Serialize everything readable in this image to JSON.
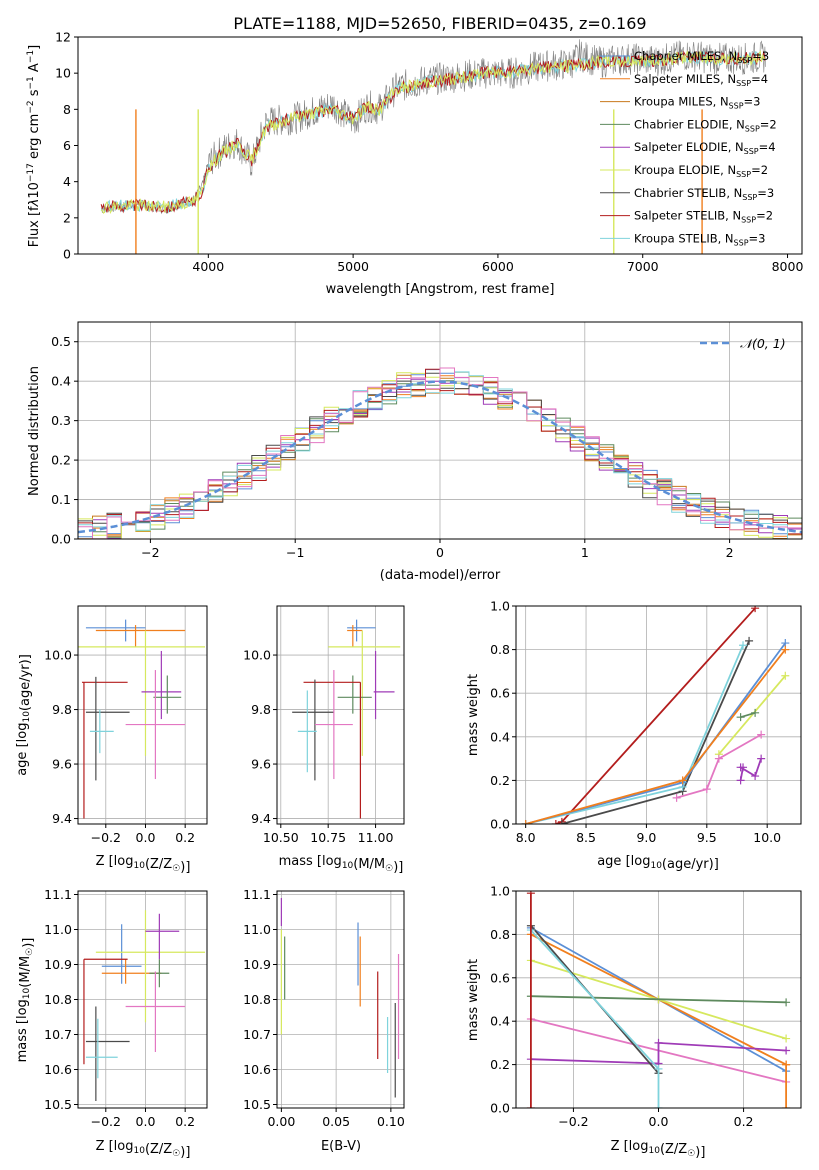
{
  "title": "PLATE=1188, MJD=52650, FIBERID=0435, z=0.169",
  "colors": {
    "Chabrier MILES": "#5b8fd6",
    "Salpeter MILES": "#f07f1e",
    "Kroupa MILES": "#c8781c",
    "Chabrier ELODIE": "#5e8a5e",
    "Salpeter ELODIE": "#9f3bb7",
    "Kroupa ELODIE": "#d6e85e",
    "Chabrier STELIB": "#4a4a4a",
    "Salpeter STELIB": "#b31d1d",
    "Kroupa STELIB": "#7fd3dc",
    "pink": "#e377c2",
    "data": "#808080",
    "normal": "#5b8fd6"
  },
  "chart_data": [
    {
      "type": "line",
      "id": "spectrum",
      "title": "PLATE=1188, MJD=52650, FIBERID=0435, z=0.169",
      "xlabel": "wavelength [Angstrom, rest frame]",
      "ylabel": "Flux [fλ10⁻¹⁷ erg cm⁻² s⁻¹ A⁻¹]",
      "xlim": [
        3100,
        8100
      ],
      "ylim": [
        0,
        12
      ],
      "xticks": [
        "4000",
        "5000",
        "6000",
        "7000",
        "8000"
      ],
      "yticks": [
        "0",
        "2",
        "4",
        "6",
        "8",
        "10",
        "12"
      ],
      "legend_position": "right",
      "legend": [
        {
          "name": "Chabrier MILES",
          "nssp": "3"
        },
        {
          "name": "Salpeter MILES",
          "nssp": "4"
        },
        {
          "name": "Kroupa MILES",
          "nssp": "3"
        },
        {
          "name": "Chabrier ELODIE",
          "nssp": "2"
        },
        {
          "name": "Salpeter ELODIE",
          "nssp": "4"
        },
        {
          "name": "Kroupa ELODIE",
          "nssp": "2"
        },
        {
          "name": "Chabrier STELIB",
          "nssp": "3"
        },
        {
          "name": "Salpeter STELIB",
          "nssp": "2"
        },
        {
          "name": "Kroupa STELIB",
          "nssp": "3"
        }
      ],
      "series": [
        {
          "name": "data",
          "x": [
            3260,
            3500,
            3700,
            3900,
            3960,
            4000,
            4100,
            4200,
            4300,
            4400,
            4600,
            4860,
            5000,
            5100,
            5175,
            5300,
            5500,
            5700,
            5900,
            6100,
            6300,
            6500,
            6563,
            6700,
            6900,
            7100,
            7300,
            7500,
            7700,
            7850
          ],
          "y": [
            2.5,
            2.8,
            2.5,
            3.0,
            3.8,
            5.0,
            5.8,
            6.2,
            5.0,
            7.3,
            7.5,
            8.3,
            7.3,
            8.2,
            8.0,
            9.2,
            9.6,
            9.8,
            10.0,
            10.0,
            10.4,
            10.5,
            11.0,
            10.6,
            10.8,
            10.7,
            11.0,
            10.8,
            10.8,
            10.9
          ]
        },
        {
          "name": "model",
          "x": [
            3260,
            3500,
            3700,
            3900,
            3960,
            4000,
            4100,
            4200,
            4300,
            4400,
            4600,
            4860,
            5000,
            5100,
            5175,
            5300,
            5500,
            5700,
            5900,
            6100,
            6300,
            6500,
            6563,
            6700,
            6900,
            7100,
            7300,
            7500,
            7700,
            7850
          ],
          "y": [
            2.6,
            2.7,
            2.6,
            2.9,
            3.5,
            4.8,
            5.6,
            6.1,
            5.2,
            7.0,
            7.6,
            8.0,
            7.5,
            8.2,
            7.9,
            9.1,
            9.5,
            9.7,
            10.0,
            10.1,
            10.3,
            10.4,
            10.5,
            10.6,
            10.7,
            10.7,
            10.9,
            10.8,
            10.8,
            10.9
          ]
        }
      ]
    },
    {
      "type": "histogram",
      "id": "residuals",
      "xlabel": "(data-model)/error",
      "ylabel": "Normed distribution",
      "xlim": [
        -2.5,
        2.5
      ],
      "ylim": [
        0,
        0.55
      ],
      "xticks": [
        "−2",
        "−1",
        "0",
        "1",
        "2"
      ],
      "yticks": [
        "0.0",
        "0.1",
        "0.2",
        "0.3",
        "0.4",
        "0.5"
      ],
      "grid": true,
      "legend_position": "top-right",
      "normal_label": "𝒩(0, 1)"
    },
    {
      "type": "errorbar",
      "id": "age-Z",
      "xlabel": "Z [log₁₀(Z/Z☉)]",
      "ylabel": "age  [log₁₀(age/yr)]",
      "xlim": [
        -0.34,
        0.31
      ],
      "ylim": [
        9.38,
        10.18
      ],
      "xticks": [
        "−0.2",
        "0.0",
        "0.2"
      ],
      "yticks": [
        "9.4",
        "9.6",
        "9.8",
        "10.0"
      ],
      "points": [
        {
          "c": "Chabrier MILES",
          "x": -0.1,
          "y": 10.1,
          "ex": [
            0.2,
            0.1
          ],
          "ey": [
            0.05,
            0.03
          ]
        },
        {
          "c": "Salpeter MILES",
          "x": -0.05,
          "y": 10.09,
          "ex": [
            0.2,
            0.25
          ],
          "ey": [
            0.06,
            0.02
          ]
        },
        {
          "c": "Kroupa ELODIE",
          "x": 0.0,
          "y": 10.03,
          "ex": [
            0.35,
            0.3
          ],
          "ey": [
            0.4,
            0.06
          ]
        },
        {
          "c": "Salpeter ELODIE",
          "x": 0.08,
          "y": 9.865,
          "ex": [
            0.1,
            0.1
          ],
          "ey": [
            0.1,
            0.15
          ]
        },
        {
          "c": "Chabrier ELODIE",
          "x": 0.11,
          "y": 9.845,
          "ex": [
            0.07,
            0.07
          ],
          "ey": [
            0.06,
            0.08
          ]
        },
        {
          "c": "Salpeter STELIB",
          "x": -0.31,
          "y": 9.9,
          "ex": [
            0.01,
            0.22
          ],
          "ey": [
            0.5,
            0.0
          ]
        },
        {
          "c": "Chabrier STELIB",
          "x": -0.25,
          "y": 9.79,
          "ex": [
            0.05,
            0.17
          ],
          "ey": [
            0.25,
            0.13
          ]
        },
        {
          "c": "Kroupa STELIB",
          "x": -0.23,
          "y": 9.72,
          "ex": [
            0.05,
            0.07
          ],
          "ey": [
            0.08,
            0.08
          ]
        },
        {
          "c": "pink",
          "x": 0.05,
          "y": 9.745,
          "ex": [
            0.15,
            0.15
          ],
          "ey": [
            0.2,
            0.2
          ]
        }
      ]
    },
    {
      "type": "errorbar",
      "id": "age-mass",
      "xlabel": "mass [log₁₀(M/M☉)]",
      "ylabel": "",
      "xlim": [
        10.48,
        11.15
      ],
      "ylim": [
        9.38,
        10.18
      ],
      "xticks": [
        "10.50",
        "10.75",
        "11.00"
      ],
      "yticks": [
        "9.4",
        "9.6",
        "9.8",
        "10.0"
      ],
      "points": [
        {
          "c": "Chabrier MILES",
          "x": 10.9,
          "y": 10.1,
          "ex": [
            0.05,
            0.1
          ],
          "ey": [
            0.05,
            0.03
          ]
        },
        {
          "c": "Salpeter MILES",
          "x": 10.88,
          "y": 10.09,
          "ex": [
            0.03,
            0.05
          ],
          "ey": [
            0.06,
            0.02
          ]
        },
        {
          "c": "Kroupa ELODIE",
          "x": 10.93,
          "y": 10.03,
          "ex": [
            0.18,
            0.2
          ],
          "ey": [
            0.4,
            0.06
          ]
        },
        {
          "c": "Salpeter ELODIE",
          "x": 11.0,
          "y": 9.865,
          "ex": [
            0.01,
            0.1
          ],
          "ey": [
            0.1,
            0.15
          ]
        },
        {
          "c": "Chabrier ELODIE",
          "x": 10.88,
          "y": 9.845,
          "ex": [
            0.08,
            0.1
          ],
          "ey": [
            0.06,
            0.08
          ]
        },
        {
          "c": "Salpeter STELIB",
          "x": 10.92,
          "y": 9.9,
          "ex": [
            0.3,
            0.0
          ],
          "ey": [
            0.5,
            0.0
          ]
        },
        {
          "c": "Chabrier STELIB",
          "x": 10.68,
          "y": 9.79,
          "ex": [
            0.12,
            0.1
          ],
          "ey": [
            0.25,
            0.12
          ]
        },
        {
          "c": "Kroupa STELIB",
          "x": 10.64,
          "y": 9.72,
          "ex": [
            0.05,
            0.05
          ],
          "ey": [
            0.15,
            0.15
          ]
        },
        {
          "c": "pink",
          "x": 10.78,
          "y": 9.745,
          "ex": [
            0.1,
            0.1
          ],
          "ey": [
            0.2,
            0.2
          ]
        }
      ]
    },
    {
      "type": "line",
      "id": "weight-age",
      "xlabel": "age  [log₁₀(age/yr)]",
      "ylabel": "mass weight",
      "xlim": [
        7.92,
        10.28
      ],
      "ylim": [
        0,
        1
      ],
      "xticks": [
        "8.0",
        "8.5",
        "9.0",
        "9.5",
        "10.0"
      ],
      "yticks": [
        "0.0",
        "0.2",
        "0.4",
        "0.6",
        "0.8",
        "1.0"
      ],
      "grid": true,
      "series": [
        {
          "c": "Salpeter STELIB",
          "x": [
            8.25,
            8.3,
            9.9
          ],
          "y": [
            0.0,
            0.01,
            0.99
          ]
        },
        {
          "c": "Chabrier STELIB",
          "x": [
            8.3,
            9.3,
            9.85
          ],
          "y": [
            0.0,
            0.15,
            0.84
          ]
        },
        {
          "c": "Kroupa STELIB",
          "x": [
            8.0,
            9.3,
            9.8
          ],
          "y": [
            0.0,
            0.17,
            0.82
          ]
        },
        {
          "c": "Chabrier MILES",
          "x": [
            8.0,
            9.3,
            10.15
          ],
          "y": [
            0.0,
            0.19,
            0.83
          ]
        },
        {
          "c": "Salpeter MILES",
          "x": [
            8.0,
            9.3,
            10.15
          ],
          "y": [
            0.0,
            0.2,
            0.8
          ]
        },
        {
          "c": "Kroupa ELODIE",
          "x": [
            9.6,
            10.15
          ],
          "y": [
            0.32,
            0.68
          ]
        },
        {
          "c": "Chabrier ELODIE",
          "x": [
            9.78,
            9.9
          ],
          "y": [
            0.49,
            0.51
          ]
        },
        {
          "c": "pink",
          "x": [
            9.25,
            9.5,
            9.6,
            9.95
          ],
          "y": [
            0.12,
            0.16,
            0.3,
            0.41
          ]
        },
        {
          "c": "Salpeter ELODIE",
          "x": [
            9.78,
            9.9,
            9.95
          ],
          "y": [
            0.26,
            0.22,
            0.3
          ]
        },
        {
          "c": "Salpeter ELODIE",
          "x": [
            9.78,
            9.8
          ],
          "y": [
            0.2,
            0.26
          ]
        }
      ]
    },
    {
      "type": "errorbar",
      "id": "mass-Z",
      "xlabel": "Z [log₁₀(Z/Z☉)]",
      "ylabel": "mass [log₁₀(M/M☉)]",
      "xlim": [
        -0.34,
        0.31
      ],
      "ylim": [
        10.49,
        11.11
      ],
      "xticks": [
        "−0.2",
        "0.0",
        "0.2"
      ],
      "yticks": [
        "10.5",
        "10.6",
        "10.7",
        "10.8",
        "10.9",
        "11.0",
        "11.1"
      ],
      "points": [
        {
          "c": "Chabrier MILES",
          "x": -0.12,
          "y": 10.895,
          "ex": [
            0.1,
            0.1
          ],
          "ey": [
            0.05,
            0.12
          ]
        },
        {
          "c": "Salpeter MILES",
          "x": -0.1,
          "y": 10.875,
          "ex": [
            0.12,
            0.18
          ],
          "ey": [
            0.03,
            0.04
          ]
        },
        {
          "c": "Kroupa ELODIE",
          "x": 0.0,
          "y": 10.935,
          "ex": [
            0.25,
            0.3
          ],
          "ey": [
            0.2,
            0.12
          ]
        },
        {
          "c": "Salpeter ELODIE",
          "x": 0.07,
          "y": 10.995,
          "ex": [
            0.07,
            0.1
          ],
          "ey": [
            0.08,
            0.05
          ]
        },
        {
          "c": "Chabrier ELODIE",
          "x": 0.07,
          "y": 10.875,
          "ex": [
            0.05,
            0.05
          ],
          "ey": [
            0.04,
            0.04
          ]
        },
        {
          "c": "Salpeter STELIB",
          "x": -0.31,
          "y": 10.915,
          "ex": [
            0.0,
            0.22
          ],
          "ey": [
            0.3,
            0.0
          ]
        },
        {
          "c": "Chabrier STELIB",
          "x": -0.25,
          "y": 10.68,
          "ex": [
            0.05,
            0.17
          ],
          "ey": [
            0.17,
            0.1
          ]
        },
        {
          "c": "Kroupa STELIB",
          "x": -0.24,
          "y": 10.635,
          "ex": [
            0.06,
            0.1
          ],
          "ey": [
            0.06,
            0.11
          ]
        },
        {
          "c": "pink",
          "x": 0.05,
          "y": 10.78,
          "ex": [
            0.15,
            0.15
          ],
          "ey": [
            0.13,
            0.1
          ]
        }
      ]
    },
    {
      "type": "errorbar",
      "id": "mass-EBV",
      "xlabel": "E(B-V)",
      "ylabel": "",
      "xlim": [
        -0.004,
        0.112
      ],
      "ylim": [
        10.49,
        11.11
      ],
      "xticks": [
        "0.00",
        "0.05",
        "0.10"
      ],
      "yticks": [
        "10.5",
        "10.6",
        "10.7",
        "10.8",
        "10.9",
        "11.0",
        "11.1"
      ],
      "points": [
        {
          "c": "Salpeter ELODIE",
          "x": 0.0,
          "y": 11.05,
          "ex": [
            0,
            0
          ],
          "ey": [
            0.04,
            0.04
          ]
        },
        {
          "c": "Kroupa ELODIE",
          "x": 0.0,
          "y": 10.9,
          "ex": [
            0,
            0
          ],
          "ey": [
            0.2,
            0.1
          ]
        },
        {
          "c": "Chabrier ELODIE",
          "x": 0.003,
          "y": 10.89,
          "ex": [
            0,
            0
          ],
          "ey": [
            0.09,
            0.09
          ]
        },
        {
          "c": "Chabrier MILES",
          "x": 0.07,
          "y": 10.93,
          "ex": [
            0,
            0
          ],
          "ey": [
            0.09,
            0.09
          ]
        },
        {
          "c": "Salpeter MILES",
          "x": 0.072,
          "y": 10.88,
          "ex": [
            0,
            0
          ],
          "ey": [
            0.1,
            0.1
          ]
        },
        {
          "c": "Salpeter STELIB",
          "x": 0.088,
          "y": 10.75,
          "ex": [
            0,
            0
          ],
          "ey": [
            0.12,
            0.13
          ]
        },
        {
          "c": "Kroupa STELIB",
          "x": 0.097,
          "y": 10.69,
          "ex": [
            0,
            0
          ],
          "ey": [
            0.1,
            0.06
          ]
        },
        {
          "c": "Chabrier STELIB",
          "x": 0.104,
          "y": 10.67,
          "ex": [
            0,
            0
          ],
          "ey": [
            0.15,
            0.12
          ]
        },
        {
          "c": "pink",
          "x": 0.107,
          "y": 10.78,
          "ex": [
            0,
            0
          ],
          "ey": [
            0.15,
            0.15
          ]
        }
      ]
    },
    {
      "type": "line",
      "id": "weight-Z",
      "xlabel": "Z [log₁₀(Z/Z☉)]",
      "ylabel": "mass weight",
      "xlim": [
        -0.335,
        0.335
      ],
      "ylim": [
        0,
        1
      ],
      "xticks": [
        "−0.2",
        "0.0",
        "0.2"
      ],
      "yticks": [
        "0.0",
        "0.2",
        "0.4",
        "0.6",
        "0.8",
        "1.0"
      ],
      "grid": true,
      "series": [
        {
          "c": "Chabrier MILES",
          "x": [
            -0.3,
            0.0,
            0.3
          ],
          "y": [
            0.83,
            0.5,
            0.17
          ]
        },
        {
          "c": "Salpeter MILES",
          "x": [
            -0.3,
            0.0,
            0.3
          ],
          "y": [
            0.8,
            0.5,
            0.2
          ]
        },
        {
          "c": "Kroupa ELODIE",
          "x": [
            -0.3,
            0.0,
            0.3
          ],
          "y": [
            0.68,
            0.5,
            0.32
          ]
        },
        {
          "c": "Chabrier ELODIE",
          "x": [
            -0.3,
            0.3
          ],
          "y": [
            0.515,
            0.487
          ]
        },
        {
          "c": "pink",
          "x": [
            -0.3,
            0.3
          ],
          "y": [
            0.41,
            0.12
          ]
        },
        {
          "c": "Salpeter ELODIE",
          "x": [
            -0.3,
            0.0,
            0.0,
            0.3
          ],
          "y": [
            0.225,
            0.205,
            0.3,
            0.265
          ]
        },
        {
          "c": "Chabrier STELIB",
          "x": [
            -0.3,
            0.0
          ],
          "y": [
            0.84,
            0.16
          ]
        },
        {
          "c": "Kroupa STELIB",
          "x": [
            -0.3,
            0.0
          ],
          "y": [
            0.82,
            0.18
          ]
        },
        {
          "c": "Kroupa STELIB",
          "x": [
            0.0,
            0.0
          ],
          "y": [
            0.0,
            0.18
          ]
        },
        {
          "c": "Salpeter STELIB",
          "x": [
            -0.3,
            -0.3
          ],
          "y": [
            0.0,
            0.99
          ]
        },
        {
          "c": "Salpeter MILES",
          "x": [
            0.3,
            0.3
          ],
          "y": [
            0.0,
            0.2
          ]
        }
      ]
    }
  ]
}
